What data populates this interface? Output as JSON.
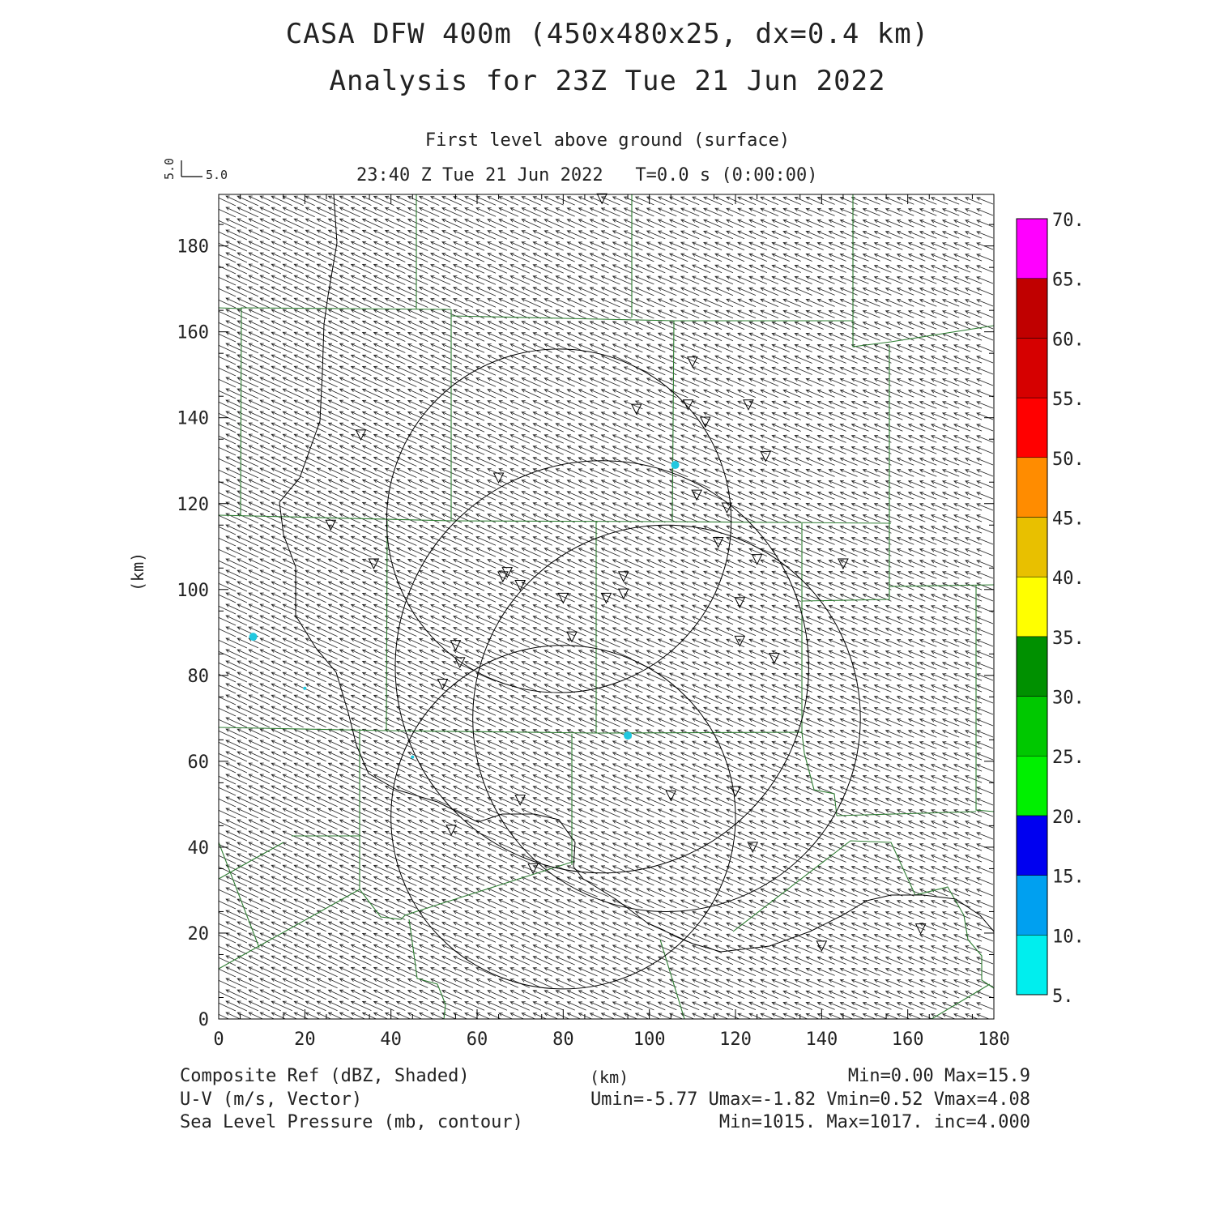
{
  "titles": {
    "line1": "CASA DFW 400m (450x480x25, dx=0.4 km)",
    "line2": "Analysis for 23Z Tue 21 Jun 2022",
    "level": "First level above ground (surface)",
    "time": "23:40 Z Tue 21 Jun 2022   T=0.0 s (0:00:00)"
  },
  "vector_key": {
    "u_label": "5.0",
    "v_label": "5.0"
  },
  "axes": {
    "ylabel": "(km)",
    "xunit": "(km)",
    "x_ticks": [
      "0",
      "20",
      "40",
      "60",
      "80",
      "100",
      "120",
      "140",
      "160",
      "180"
    ],
    "y_ticks": [
      "0",
      "20",
      "40",
      "60",
      "80",
      "100",
      "120",
      "140",
      "160",
      "180"
    ],
    "xlim": [
      0,
      180
    ],
    "ylim": [
      0,
      192
    ]
  },
  "colorbar": {
    "labels": [
      "5.",
      "10.",
      "15.",
      "20.",
      "25.",
      "30.",
      "35.",
      "40.",
      "45.",
      "50.",
      "55.",
      "60.",
      "65.",
      "70."
    ],
    "colors": [
      "#00eeee",
      "#00a0f0",
      "#0000f0",
      "#00f000",
      "#00c800",
      "#009000",
      "#ffff00",
      "#e8c000",
      "#ff8c00",
      "#ff0000",
      "#d60000",
      "#c00000",
      "#ff00ff"
    ]
  },
  "footer": {
    "line1_left": "Composite Ref (dBZ, Shaded)",
    "line1_right": "Min=0.00 Max=15.9",
    "line2_left": "U-V (m/s, Vector)",
    "line2_right": "Umin=-5.77 Umax=-1.82 Vmin=0.52 Vmax=4.08",
    "line3_left": "Sea Level Pressure (mb, contour)",
    "line3_right": "Min=1015. Max=1017. inc=4.000"
  },
  "colors": {
    "county": "#2e7d32",
    "contour": "#000000",
    "radar_echo": "#20c8e0"
  },
  "map_data": {
    "radar_sites_km": [
      [
        89,
        191
      ],
      [
        110,
        153
      ],
      [
        97,
        142
      ],
      [
        109,
        143
      ],
      [
        113,
        139
      ],
      [
        123,
        143
      ],
      [
        127,
        131
      ],
      [
        33,
        136
      ],
      [
        65,
        126
      ],
      [
        111,
        122
      ],
      [
        118,
        119
      ],
      [
        26,
        115
      ],
      [
        116,
        111
      ],
      [
        125,
        107
      ],
      [
        36,
        106
      ],
      [
        145,
        106
      ],
      [
        67,
        104
      ],
      [
        66,
        103
      ],
      [
        70,
        101
      ],
      [
        94,
        103
      ],
      [
        90,
        98
      ],
      [
        94,
        99
      ],
      [
        80,
        98
      ],
      [
        121,
        97
      ],
      [
        82,
        89
      ],
      [
        121,
        88
      ],
      [
        129,
        84
      ],
      [
        55,
        87
      ],
      [
        56,
        83
      ],
      [
        52,
        78
      ],
      [
        70,
        51
      ],
      [
        105,
        52
      ],
      [
        120,
        53
      ],
      [
        54,
        44
      ],
      [
        124,
        40
      ],
      [
        73,
        35
      ],
      [
        140,
        17
      ],
      [
        163,
        21
      ]
    ],
    "pressure_rings_km": [
      [
        79,
        116,
        40
      ],
      [
        89,
        82,
        48
      ],
      [
        104,
        70,
        45
      ],
      [
        80,
        47,
        40
      ]
    ],
    "echoes_km": [
      [
        106,
        129
      ],
      [
        95,
        66
      ],
      [
        8,
        89
      ],
      [
        20,
        77
      ],
      [
        45,
        61
      ]
    ]
  }
}
